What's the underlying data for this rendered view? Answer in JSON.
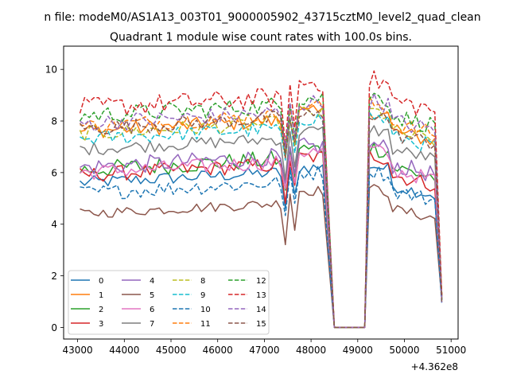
{
  "figure": {
    "suptitle": "n file: modeM0/AS1A13_003T01_9000005902_43715cztM0_level2_quad_clean",
    "title": "Quadrant 1 module wise count rates with 100.0s bins.",
    "offset_label": "+4.362e8"
  },
  "chart_data": {
    "type": "line",
    "title": "Quadrant 1 module wise count rates with 100.0s bins.",
    "xlim": [
      42700,
      51150
    ],
    "ylim": [
      -0.45,
      10.9
    ],
    "x_offset": 436200000,
    "x_ticks": [
      43000,
      44000,
      45000,
      46000,
      47000,
      48000,
      49000,
      50000,
      51000
    ],
    "y_ticks": [
      0,
      2,
      4,
      6,
      8,
      10
    ],
    "x_tick_labels": [
      "43000",
      "44000",
      "45000",
      "46000",
      "47000",
      "48000",
      "49000",
      "50000",
      "51000"
    ],
    "y_tick_labels": [
      "0",
      "2",
      "4",
      "6",
      "8",
      "10"
    ],
    "segments": [
      [
        43050,
        47350,
        100
      ],
      [
        47350,
        48250,
        100
      ],
      [
        48250,
        49250,
        100
      ],
      [
        49250,
        50800,
        100
      ]
    ],
    "legend": {
      "placement": "lower-left",
      "ncol": 4
    },
    "series": [
      {
        "name": "0",
        "color": "#1f77b4",
        "style": "solid",
        "base1": 5.6,
        "base2": 5.7,
        "drop": 4.6,
        "noise": 0.25
      },
      {
        "name": "1",
        "color": "#ff7f0e",
        "style": "solid",
        "base1": 7.6,
        "base2": 7.8,
        "drop": 6.6,
        "noise": 0.3
      },
      {
        "name": "2",
        "color": "#2ca02c",
        "style": "solid",
        "base1": 6.1,
        "base2": 6.4,
        "drop": 5.4,
        "noise": 0.35
      },
      {
        "name": "3",
        "color": "#d62728",
        "style": "solid",
        "base1": 5.9,
        "base2": 6.1,
        "drop": 4.9,
        "noise": 0.3
      },
      {
        "name": "4",
        "color": "#9467bd",
        "style": "solid",
        "base1": 6.2,
        "base2": 6.5,
        "drop": 5.4,
        "noise": 0.35
      },
      {
        "name": "5",
        "color": "#8c564b",
        "style": "solid",
        "base1": 4.4,
        "base2": 4.8,
        "drop": 3.3,
        "noise": 0.2
      },
      {
        "name": "6",
        "color": "#e377c2",
        "style": "solid",
        "base1": 6.0,
        "base2": 6.3,
        "drop": 5.2,
        "noise": 0.3
      },
      {
        "name": "7",
        "color": "#7f7f7f",
        "style": "solid",
        "base1": 6.9,
        "base2": 7.1,
        "drop": 5.8,
        "noise": 0.25
      },
      {
        "name": "8",
        "color": "#bcbd22",
        "style": "dashed",
        "base1": 7.5,
        "base2": 7.8,
        "drop": 6.5,
        "noise": 0.3
      },
      {
        "name": "9",
        "color": "#17becf",
        "style": "dashed",
        "base1": 7.3,
        "base2": 7.6,
        "drop": 6.3,
        "noise": 0.3
      },
      {
        "name": "10",
        "color": "#1f77b4",
        "style": "dashed",
        "base1": 5.2,
        "base2": 5.5,
        "drop": 4.3,
        "noise": 0.3
      },
      {
        "name": "11",
        "color": "#ff7f0e",
        "style": "dashed",
        "base1": 7.8,
        "base2": 8.1,
        "drop": 6.8,
        "noise": 0.3
      },
      {
        "name": "12",
        "color": "#2ca02c",
        "style": "dashed",
        "base1": 8.2,
        "base2": 8.4,
        "drop": 7.0,
        "noise": 0.35
      },
      {
        "name": "13",
        "color": "#d62728",
        "style": "dashed",
        "base1": 8.5,
        "base2": 9.0,
        "drop": 7.2,
        "noise": 0.4
      },
      {
        "name": "14",
        "color": "#9467bd",
        "style": "dashed",
        "base1": 7.9,
        "base2": 8.2,
        "drop": 6.9,
        "noise": 0.35
      },
      {
        "name": "15",
        "color": "#8c564b",
        "style": "dashed",
        "base1": 7.7,
        "base2": 7.7,
        "drop": 6.6,
        "noise": 0.3
      }
    ]
  }
}
